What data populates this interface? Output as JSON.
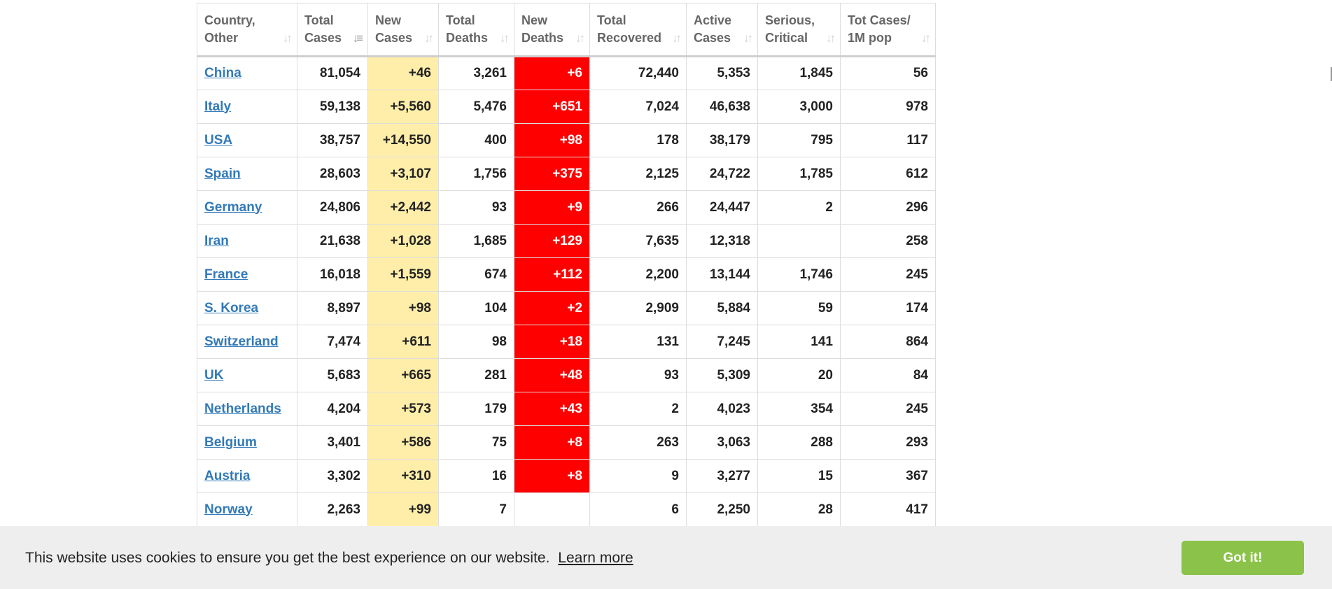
{
  "table": {
    "columns": [
      {
        "line1": "Country,",
        "line2": "Other"
      },
      {
        "line1": "Total",
        "line2": "Cases"
      },
      {
        "line1": "New",
        "line2": "Cases"
      },
      {
        "line1": "Total",
        "line2": "Deaths"
      },
      {
        "line1": "New",
        "line2": "Deaths"
      },
      {
        "line1": "Total",
        "line2": "Recovered"
      },
      {
        "line1": "Active",
        "line2": "Cases"
      },
      {
        "line1": "Serious,",
        "line2": "Critical"
      },
      {
        "line1": "Tot Cases/",
        "line2": "1M pop"
      }
    ],
    "rows": [
      {
        "country": "China",
        "total_cases": "81,054",
        "new_cases": "+46",
        "total_deaths": "3,261",
        "new_deaths": "+6",
        "total_recovered": "72,440",
        "active_cases": "5,353",
        "serious_critical": "1,845",
        "tot_cases_1m": "56"
      },
      {
        "country": "Italy",
        "total_cases": "59,138",
        "new_cases": "+5,560",
        "total_deaths": "5,476",
        "new_deaths": "+651",
        "total_recovered": "7,024",
        "active_cases": "46,638",
        "serious_critical": "3,000",
        "tot_cases_1m": "978"
      },
      {
        "country": "USA",
        "total_cases": "38,757",
        "new_cases": "+14,550",
        "total_deaths": "400",
        "new_deaths": "+98",
        "total_recovered": "178",
        "active_cases": "38,179",
        "serious_critical": "795",
        "tot_cases_1m": "117"
      },
      {
        "country": "Spain",
        "total_cases": "28,603",
        "new_cases": "+3,107",
        "total_deaths": "1,756",
        "new_deaths": "+375",
        "total_recovered": "2,125",
        "active_cases": "24,722",
        "serious_critical": "1,785",
        "tot_cases_1m": "612"
      },
      {
        "country": "Germany",
        "total_cases": "24,806",
        "new_cases": "+2,442",
        "total_deaths": "93",
        "new_deaths": "+9",
        "total_recovered": "266",
        "active_cases": "24,447",
        "serious_critical": "2",
        "tot_cases_1m": "296"
      },
      {
        "country": "Iran",
        "total_cases": "21,638",
        "new_cases": "+1,028",
        "total_deaths": "1,685",
        "new_deaths": "+129",
        "total_recovered": "7,635",
        "active_cases": "12,318",
        "serious_critical": "",
        "tot_cases_1m": "258"
      },
      {
        "country": "France",
        "total_cases": "16,018",
        "new_cases": "+1,559",
        "total_deaths": "674",
        "new_deaths": "+112",
        "total_recovered": "2,200",
        "active_cases": "13,144",
        "serious_critical": "1,746",
        "tot_cases_1m": "245"
      },
      {
        "country": "S. Korea",
        "total_cases": "8,897",
        "new_cases": "+98",
        "total_deaths": "104",
        "new_deaths": "+2",
        "total_recovered": "2,909",
        "active_cases": "5,884",
        "serious_critical": "59",
        "tot_cases_1m": "174"
      },
      {
        "country": "Switzerland",
        "total_cases": "7,474",
        "new_cases": "+611",
        "total_deaths": "98",
        "new_deaths": "+18",
        "total_recovered": "131",
        "active_cases": "7,245",
        "serious_critical": "141",
        "tot_cases_1m": "864"
      },
      {
        "country": "UK",
        "total_cases": "5,683",
        "new_cases": "+665",
        "total_deaths": "281",
        "new_deaths": "+48",
        "total_recovered": "93",
        "active_cases": "5,309",
        "serious_critical": "20",
        "tot_cases_1m": "84"
      },
      {
        "country": "Netherlands",
        "total_cases": "4,204",
        "new_cases": "+573",
        "total_deaths": "179",
        "new_deaths": "+43",
        "total_recovered": "2",
        "active_cases": "4,023",
        "serious_critical": "354",
        "tot_cases_1m": "245"
      },
      {
        "country": "Belgium",
        "total_cases": "3,401",
        "new_cases": "+586",
        "total_deaths": "75",
        "new_deaths": "+8",
        "total_recovered": "263",
        "active_cases": "3,063",
        "serious_critical": "288",
        "tot_cases_1m": "293"
      },
      {
        "country": "Austria",
        "total_cases": "3,302",
        "new_cases": "+310",
        "total_deaths": "16",
        "new_deaths": "+8",
        "total_recovered": "9",
        "active_cases": "3,277",
        "serious_critical": "15",
        "tot_cases_1m": "367"
      },
      {
        "country": "Norway",
        "total_cases": "2,263",
        "new_cases": "+99",
        "total_deaths": "7",
        "new_deaths": "",
        "total_recovered": "6",
        "active_cases": "2,250",
        "serious_critical": "28",
        "tot_cases_1m": "417"
      }
    ]
  },
  "icons": {
    "sort": "sort-icon",
    "sort_active": "sort-descending-icon"
  },
  "cookie": {
    "message": "This website uses cookies to ensure you get the best experience on our website.",
    "learn_more": "Learn more",
    "button": "Got it!"
  },
  "colors": {
    "new_cases_bg": "#FFEEAA",
    "new_deaths_bg": "#FF0000",
    "link": "#337AB7",
    "cookie_button": "#8BC34A"
  }
}
